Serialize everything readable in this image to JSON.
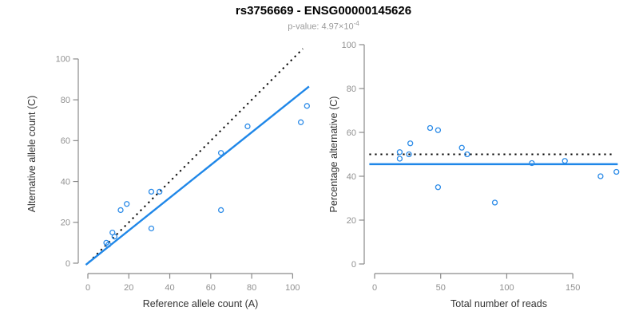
{
  "header": {
    "title": "rs3756669 - ENSG00000145626",
    "subtitle_prefix": "p-value: 4.97×10",
    "subtitle_exponent": "-4"
  },
  "colors": {
    "point": "#2d8ce8",
    "fit_line": "#1f87e8",
    "reference_line": "#000000",
    "axis": "#8a8a8a",
    "tick_label": "#909090",
    "label": "#333333",
    "title": "#000000",
    "subtitle": "#9a9a9a"
  },
  "chart_data": [
    {
      "type": "scatter",
      "panel": "left",
      "marker": "open-circle",
      "xlabel": "Reference allele count (A)",
      "ylabel": "Alternative allele count (C)",
      "xlim": [
        0,
        110
      ],
      "ylim": [
        0,
        107
      ],
      "xticks": [
        0,
        20,
        40,
        60,
        80,
        100
      ],
      "yticks": [
        0,
        20,
        40,
        60,
        80,
        100
      ],
      "grid": false,
      "points": [
        [
          9,
          10
        ],
        [
          10,
          9
        ],
        [
          12,
          15
        ],
        [
          13,
          13
        ],
        [
          16,
          26
        ],
        [
          19,
          29
        ],
        [
          31,
          17
        ],
        [
          31,
          35
        ],
        [
          35,
          35
        ],
        [
          65,
          54
        ],
        [
          65,
          26
        ],
        [
          78,
          67
        ],
        [
          104,
          69
        ],
        [
          107,
          77
        ]
      ],
      "lines": [
        {
          "name": "identity-reference",
          "style": "dotted",
          "from": [
            0.5,
            0.5
          ],
          "to": [
            105,
            105
          ]
        },
        {
          "name": "fit",
          "style": "solid",
          "from": [
            -1,
            -0.8
          ],
          "to": [
            108,
            86.5
          ]
        }
      ]
    },
    {
      "type": "scatter",
      "panel": "right",
      "marker": "open-circle",
      "xlabel": "Total number of reads",
      "ylabel": "Percentage alternative (C)",
      "xlim": [
        0,
        188
      ],
      "ylim": [
        0,
        100
      ],
      "xticks": [
        0,
        50,
        100,
        150
      ],
      "yticks": [
        0,
        20,
        40,
        60,
        80,
        100
      ],
      "grid": false,
      "points": [
        [
          19,
          51
        ],
        [
          19,
          48
        ],
        [
          26,
          50
        ],
        [
          27,
          55
        ],
        [
          42,
          62
        ],
        [
          48,
          61
        ],
        [
          48,
          35
        ],
        [
          66,
          53
        ],
        [
          70,
          50
        ],
        [
          91,
          28
        ],
        [
          119,
          46
        ],
        [
          144,
          47
        ],
        [
          171,
          40
        ],
        [
          183,
          42
        ]
      ],
      "lines": [
        {
          "name": "fifty-percent-reference",
          "style": "dotted",
          "from": [
            -4,
            50
          ],
          "to": [
            182,
            50
          ]
        },
        {
          "name": "fit",
          "style": "solid",
          "from": [
            -4,
            45.5
          ],
          "to": [
            184,
            45.5
          ]
        }
      ]
    }
  ]
}
